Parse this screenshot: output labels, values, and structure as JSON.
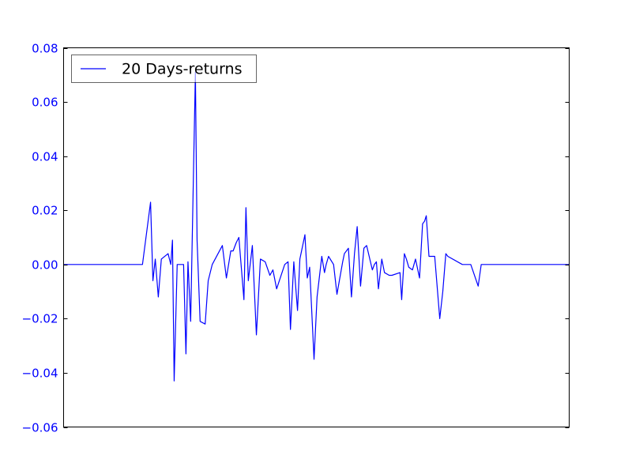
{
  "colors": {
    "series": "#0000ff",
    "axes": "#000000",
    "tick_labels": "#0000ff",
    "background": "#ffffff"
  },
  "chart_data": {
    "type": "line",
    "title": "",
    "xlabel": "",
    "ylabel": "",
    "ylim": [
      -0.06,
      0.08
    ],
    "xlim": [
      0,
      150
    ],
    "yticks": [
      -0.06,
      -0.04,
      -0.02,
      0.0,
      0.02,
      0.04,
      0.06,
      0.08
    ],
    "ytick_labels": [
      "−0.06",
      "−0.04",
      "−0.02",
      "0.00",
      "0.02",
      "0.04",
      "0.06",
      "0.08"
    ],
    "x_tick_labels_visible": false,
    "grid": false,
    "legend": {
      "location": "upper left",
      "entries": [
        "20 Days-returns"
      ]
    },
    "series": [
      {
        "name": "20 Days-returns",
        "color": "#0000ff",
        "x": [
          0,
          23.4,
          25.8,
          26.5,
          27.2,
          28.1,
          29.0,
          31.0,
          31.8,
          32.3,
          32.8,
          33.7,
          35.6,
          36.3,
          36.9,
          37.7,
          39.1,
          39.6,
          40.5,
          42.0,
          42.9,
          44.1,
          47.1,
          48.3,
          49.6,
          50.3,
          51.2,
          52.0,
          53.5,
          54.1,
          54.8,
          56.0,
          57.2,
          58.4,
          59.8,
          61.2,
          62.1,
          63.2,
          65.6,
          66.6,
          67.3,
          68.3,
          69.4,
          70.1,
          71.6,
          72.3,
          73.0,
          74.3,
          75.2,
          76.6,
          77.4,
          77.9,
          78.6,
          80.1,
          81.1,
          82.8,
          83.3,
          84.5,
          85.4,
          86.3,
          87.1,
          88.1,
          89.1,
          89.9,
          91.6,
          92.2,
          92.8,
          93.4,
          94.4,
          95.2,
          96.6,
          97.4,
          99.8,
          100.3,
          101.1,
          101.7,
          102.4,
          103.5,
          104.4,
          105.6,
          106.5,
          107.1,
          107.6,
          108.4,
          110.1,
          111.6,
          112.5,
          113.4,
          114.0,
          118.3,
          120.2,
          120.8,
          123.0,
          123.9,
          125.0,
          125.3,
          127.3,
          134.3,
          134.9,
          136.4,
          139.3,
          140.2,
          146.7,
          150.0
        ],
        "values": [
          0.0,
          0.0,
          0.023,
          -0.006,
          0.002,
          -0.012,
          0.002,
          0.004,
          0.0,
          0.009,
          -0.043,
          0.0,
          0.0,
          -0.033,
          0.001,
          -0.021,
          0.071,
          0.009,
          -0.021,
          -0.022,
          -0.006,
          0.0,
          0.007,
          -0.005,
          0.005,
          0.005,
          0.008,
          0.01,
          -0.013,
          0.021,
          -0.006,
          0.007,
          -0.026,
          0.002,
          0.001,
          -0.004,
          -0.002,
          -0.009,
          0.0,
          0.001,
          -0.024,
          0.001,
          -0.017,
          0.002,
          0.011,
          -0.005,
          -0.001,
          -0.035,
          -0.012,
          0.003,
          -0.003,
          0.0,
          0.003,
          0.0,
          -0.011,
          0.001,
          0.004,
          0.006,
          -0.012,
          0.004,
          0.014,
          -0.008,
          0.006,
          0.007,
          -0.002,
          0.0,
          0.001,
          -0.009,
          0.002,
          -0.003,
          -0.004,
          -0.004,
          -0.003,
          -0.013,
          0.004,
          0.002,
          -0.001,
          -0.002,
          0.002,
          -0.005,
          0.015,
          0.016,
          0.018,
          0.003,
          0.003,
          -0.02,
          -0.01,
          0.004,
          0.003,
          0.0,
          0.0,
          0.0,
          -0.008,
          0.0,
          0.0,
          0.0,
          0.0,
          0.0,
          0.0,
          0.0,
          0.0,
          0.0,
          0.0,
          0.0
        ]
      }
    ]
  }
}
